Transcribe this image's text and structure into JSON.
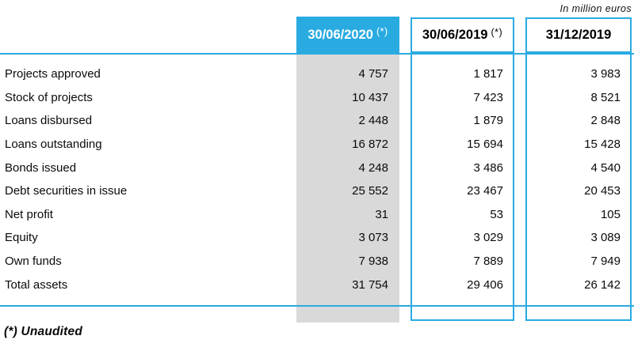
{
  "meta": {
    "unit_note": "In million euros",
    "footnote": "(*) Unaudited"
  },
  "colors": {
    "accent": "#29ABE2",
    "highlight_column_bg": "#D9D9D9",
    "header_text_on_accent": "#FFFFFF",
    "text": "#000000"
  },
  "table": {
    "columns": [
      {
        "label": "30/06/2020",
        "marker": "(*)",
        "highlighted": true
      },
      {
        "label": "30/06/2019",
        "marker": "(*)",
        "highlighted": false
      },
      {
        "label": "31/12/2019",
        "marker": "",
        "highlighted": false
      }
    ],
    "rows": [
      {
        "label": "Projects approved",
        "values": [
          "4 757",
          "1 817",
          "3 983"
        ]
      },
      {
        "label": "Stock of projects",
        "values": [
          "10 437",
          "7 423",
          "8 521"
        ]
      },
      {
        "label": "Loans disbursed",
        "values": [
          "2 448",
          "1 879",
          "2 848"
        ]
      },
      {
        "label": "Loans outstanding",
        "values": [
          "16 872",
          "15 694",
          "15 428"
        ]
      },
      {
        "label": "Bonds issued",
        "values": [
          "4 248",
          "3 486",
          "4 540"
        ]
      },
      {
        "label": "Debt securities in issue",
        "values": [
          "25 552",
          "23 467",
          "20 453"
        ]
      },
      {
        "label": "Net profit",
        "values": [
          "31",
          "53",
          "105"
        ]
      },
      {
        "label": "Equity",
        "values": [
          "3 073",
          "3 029",
          "3 089"
        ]
      },
      {
        "label": "Own funds",
        "values": [
          "7 938",
          "7 889",
          "7 949"
        ]
      },
      {
        "label": "Total assets",
        "values": [
          "31 754",
          "29 406",
          "26 142"
        ]
      }
    ]
  }
}
